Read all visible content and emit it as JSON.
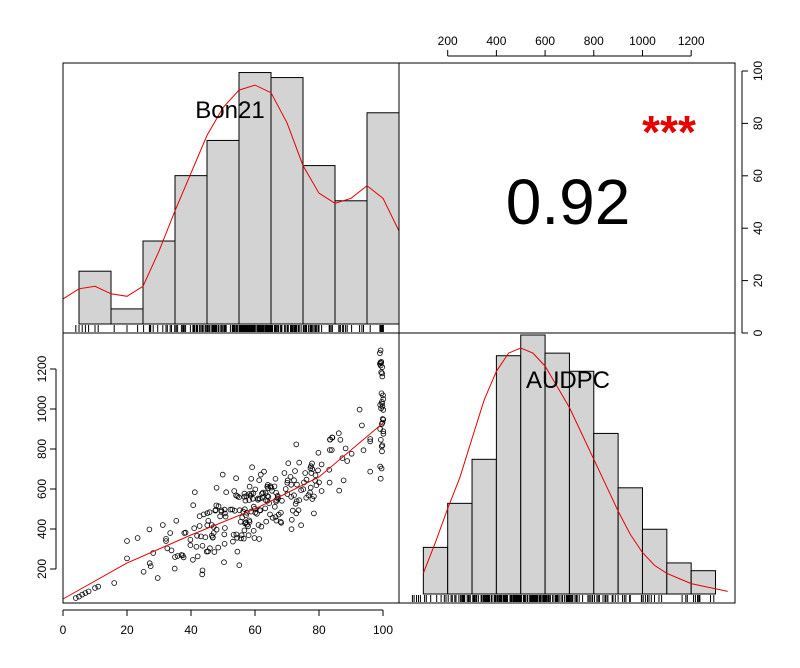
{
  "chart_data": [
    {
      "type": "bar",
      "panel": "diagonal-top-left",
      "variable": "Bon21",
      "bins": [
        [
          5,
          15
        ],
        [
          15,
          25
        ],
        [
          25,
          35
        ],
        [
          35,
          45
        ],
        [
          45,
          55
        ],
        [
          55,
          65
        ],
        [
          65,
          75
        ],
        [
          75,
          85
        ],
        [
          85,
          95
        ],
        [
          95,
          105
        ]
      ],
      "counts": [
        21,
        6,
        33,
        59,
        73,
        100,
        98,
        63,
        49,
        84
      ],
      "density_curve": [
        [
          0,
          10
        ],
        [
          5,
          14
        ],
        [
          10,
          15
        ],
        [
          15,
          12
        ],
        [
          20,
          11
        ],
        [
          25,
          15
        ],
        [
          30,
          29
        ],
        [
          35,
          45
        ],
        [
          40,
          60
        ],
        [
          45,
          75
        ],
        [
          50,
          86
        ],
        [
          55,
          93
        ],
        [
          60,
          95
        ],
        [
          65,
          92
        ],
        [
          70,
          80
        ],
        [
          75,
          63
        ],
        [
          80,
          52
        ],
        [
          85,
          48
        ],
        [
          90,
          50
        ],
        [
          95,
          55
        ],
        [
          100,
          50
        ],
        [
          105,
          37
        ]
      ],
      "rug": "dense",
      "xlim": [
        0,
        105
      ],
      "axes_shown": false
    },
    {
      "type": "text",
      "panel": "upper-right",
      "correlation": "0.92",
      "significance": "***",
      "significance_color": "#e60000"
    },
    {
      "type": "scatter",
      "panel": "lower-left",
      "x_variable": "Bon21",
      "y_variable": "AUDPC",
      "xlim": [
        0,
        105
      ],
      "ylim": [
        30,
        1380
      ],
      "xticks": [
        0,
        20,
        40,
        60,
        80,
        100
      ],
      "yticks": [
        200,
        400,
        600,
        800,
        1000,
        1200
      ],
      "trend_line": [
        [
          0,
          50
        ],
        [
          20,
          230
        ],
        [
          40,
          370
        ],
        [
          60,
          500
        ],
        [
          80,
          660
        ],
        [
          100,
          930
        ]
      ],
      "points_description": "about 300 open circles following the positive trend, with a vertical cluster at Bon21 = 100 spanning AUDPC 650 to 1330"
    },
    {
      "type": "bar",
      "panel": "diagonal-bottom-right",
      "variable": "AUDPC",
      "bins": [
        [
          100,
          200
        ],
        [
          200,
          300
        ],
        [
          300,
          400
        ],
        [
          400,
          500
        ],
        [
          500,
          600
        ],
        [
          600,
          700
        ],
        [
          700,
          800
        ],
        [
          800,
          900
        ],
        [
          900,
          1000
        ],
        [
          1000,
          1100
        ],
        [
          1100,
          1200
        ],
        [
          1200,
          1300
        ]
      ],
      "counts": [
        18,
        35,
        52,
        92,
        100,
        93,
        86,
        62,
        41,
        25,
        12,
        9
      ],
      "density_curve": [
        [
          100,
          8
        ],
        [
          150,
          20
        ],
        [
          200,
          33
        ],
        [
          250,
          45
        ],
        [
          300,
          60
        ],
        [
          350,
          75
        ],
        [
          400,
          86
        ],
        [
          450,
          93
        ],
        [
          500,
          95
        ],
        [
          550,
          93
        ],
        [
          600,
          88
        ],
        [
          650,
          80
        ],
        [
          700,
          72
        ],
        [
          750,
          62
        ],
        [
          800,
          52
        ],
        [
          850,
          42
        ],
        [
          900,
          32
        ],
        [
          950,
          23
        ],
        [
          1000,
          16
        ],
        [
          1050,
          11
        ],
        [
          1100,
          8
        ],
        [
          1150,
          6
        ],
        [
          1200,
          4
        ],
        [
          1250,
          3
        ],
        [
          1300,
          2
        ],
        [
          1350,
          1
        ]
      ],
      "rug": "dense",
      "xlim": [
        0,
        1380
      ],
      "xticks": [
        200,
        400,
        600,
        800,
        1000,
        1200
      ],
      "right_axis_ticks": [
        0,
        20,
        40,
        60,
        80,
        100
      ]
    }
  ]
}
